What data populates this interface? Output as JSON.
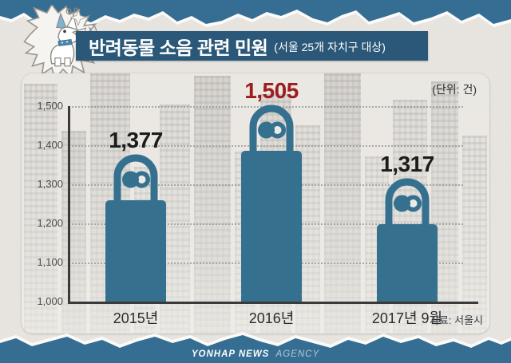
{
  "header": {
    "title": "반려동물 소음 관련 민원",
    "subtitle": "(서울 25개 자치구 대상)"
  },
  "unit_label": "(단위: 건)",
  "source_label": "자료: 서울시",
  "footer": {
    "brand_bold": "YONHAP NEWS",
    "brand_light": "AGENCY"
  },
  "colors": {
    "band_blue": "#356e92",
    "banner_blue": "#2b5878",
    "bar_blue": "#35708f",
    "highlight_red": "#9e1c20",
    "label_dark": "#1c1c1c",
    "lock_hole": "#ecebe7"
  },
  "chart_data": {
    "type": "bar",
    "title": "반려동물 소음 관련 민원 (서울 25개 자치구 대상)",
    "categories": [
      "2015년",
      "2016년",
      "2017년 9월"
    ],
    "values": [
      1377,
      1505,
      1317
    ],
    "value_labels": [
      "1,377",
      "1,505",
      "1,317"
    ],
    "highlight_index": 1,
    "unit": "건",
    "ylim": [
      1000,
      1500
    ],
    "yticks": [
      1000,
      1100,
      1200,
      1300,
      1400,
      1500
    ],
    "ytick_labels": [
      "1,000",
      "1,100",
      "1,200",
      "1,300",
      "1,400",
      "1,500"
    ],
    "grid": "horizontal-dotted",
    "legend": "none",
    "source": "자료: 서울시"
  }
}
